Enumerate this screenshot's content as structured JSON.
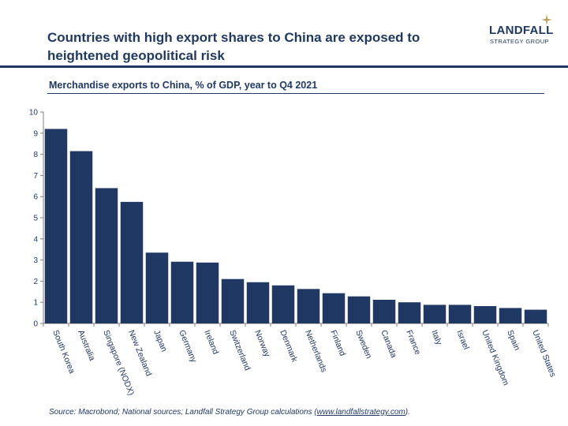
{
  "header": {
    "title": "Countries with high export shares to China are exposed to heightened geopolitical risk",
    "logo_main": "LANDFALL",
    "logo_sub": "STRATEGY GROUP"
  },
  "footer": {
    "source_prefix": "Source: Macrobond; National sources; Landfall Strategy Group calculations (",
    "source_url": "www.landfallstrategy.com",
    "source_suffix": ")."
  },
  "colors": {
    "bar": "#1f3864",
    "text": "#1f3864"
  },
  "chart_data": {
    "type": "bar",
    "title": "Merchandise exports to China, % of GDP, year to Q4 2021",
    "xlabel": "",
    "ylabel": "",
    "ylim": [
      0,
      10
    ],
    "yticks": [
      0,
      1,
      2,
      3,
      4,
      5,
      6,
      7,
      8,
      9,
      10
    ],
    "grid": false,
    "categories": [
      "South Korea",
      "Australia",
      "Singapore (NODX)",
      "New Zealand",
      "Japan",
      "Germany",
      "Ireland",
      "Switzerland",
      "Norway",
      "Denmark",
      "Netherlands",
      "Finland",
      "Sweden",
      "Canada",
      "France",
      "Italy",
      "Israel",
      "United Kingdom",
      "Spain",
      "United States"
    ],
    "values": [
      9.2,
      8.15,
      6.4,
      5.75,
      3.35,
      2.92,
      2.88,
      2.1,
      1.95,
      1.8,
      1.63,
      1.43,
      1.28,
      1.12,
      1.0,
      0.88,
      0.88,
      0.82,
      0.73,
      0.65
    ]
  }
}
